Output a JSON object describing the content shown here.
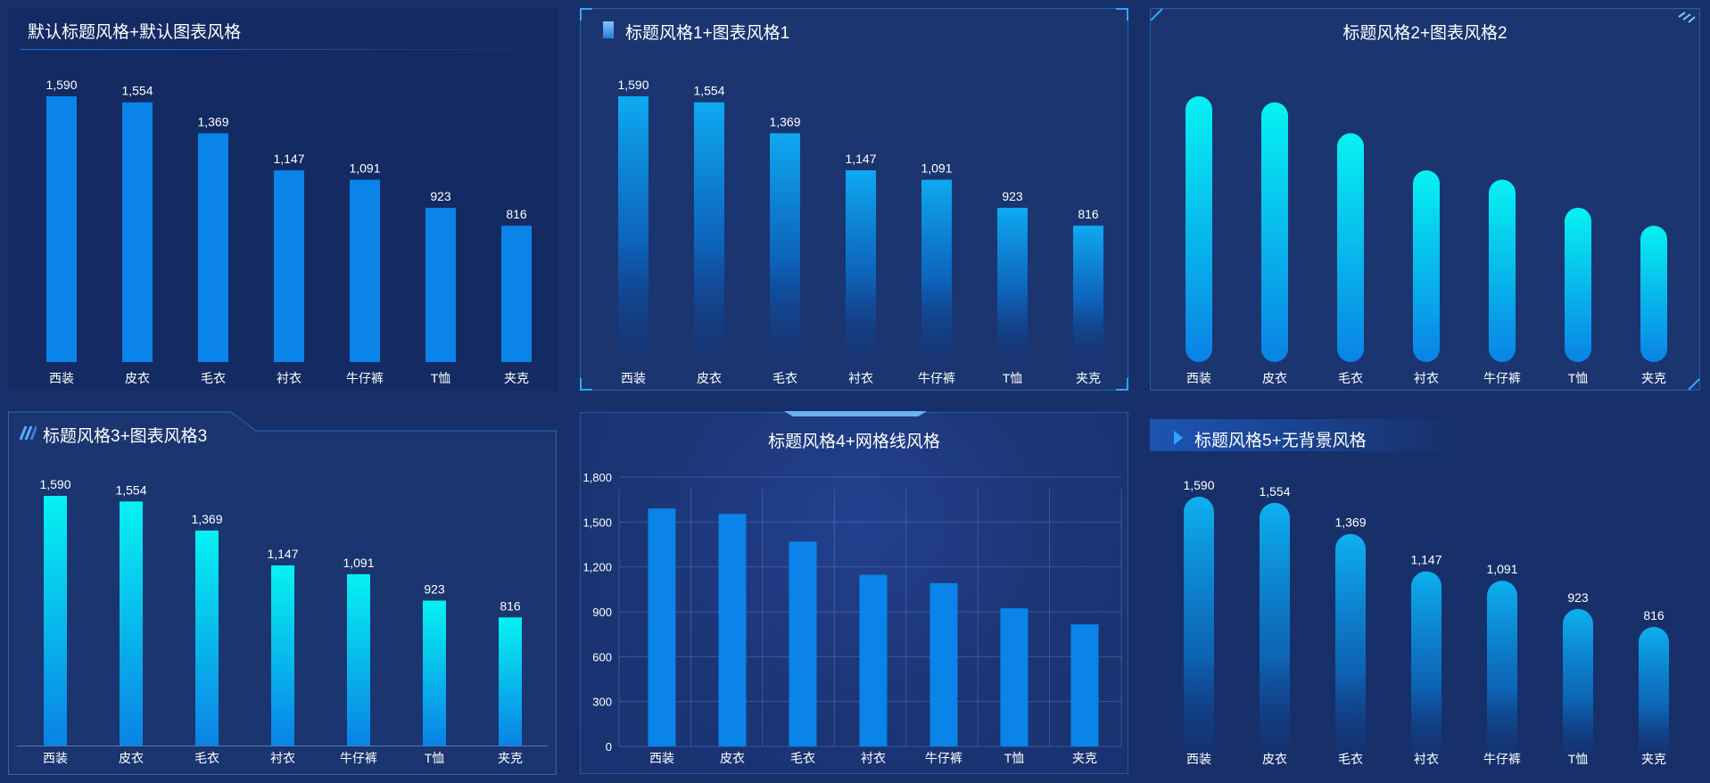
{
  "panels": [
    {
      "title": "默认标题风格+默认图表风格"
    },
    {
      "title": "标题风格1+图表风格1"
    },
    {
      "title": "标题风格2+图表风格2"
    },
    {
      "title": "标题风格3+图表风格3"
    },
    {
      "title": "标题风格4+网格线风格"
    },
    {
      "title": "标题风格5+无背景风格"
    }
  ],
  "colors": {
    "solid_bar": "#0a84e8",
    "cyan": "#06f2f2",
    "blue": "#0a82e6",
    "axis_text": "#ffffff"
  },
  "chart_data": [
    {
      "type": "bar",
      "style": "default",
      "title": "默认标题风格+默认图表风格",
      "categories": [
        "西装",
        "皮衣",
        "毛衣",
        "衬衣",
        "牛仔裤",
        "T恤",
        "夹克"
      ],
      "values": [
        1590,
        1554,
        1369,
        1147,
        1091,
        923,
        816
      ],
      "value_labels": [
        "1,590",
        "1,554",
        "1,369",
        "1,147",
        "1,091",
        "923",
        "816"
      ],
      "ylim": [
        0,
        1590
      ],
      "grid": false,
      "show_labels": true
    },
    {
      "type": "bar",
      "style": "gradient-fade",
      "title": "标题风格1+图表风格1",
      "categories": [
        "西装",
        "皮衣",
        "毛衣",
        "衬衣",
        "牛仔裤",
        "T恤",
        "夹克"
      ],
      "values": [
        1590,
        1554,
        1369,
        1147,
        1091,
        923,
        816
      ],
      "value_labels": [
        "1,590",
        "1,554",
        "1,369",
        "1,147",
        "1,091",
        "923",
        "816"
      ],
      "ylim": [
        0,
        1590
      ],
      "grid": false,
      "show_labels": true
    },
    {
      "type": "bar",
      "style": "rounded-cyan",
      "title": "标题风格2+图表风格2",
      "categories": [
        "西装",
        "皮衣",
        "毛衣",
        "衬衣",
        "牛仔裤",
        "T恤",
        "夹克"
      ],
      "values": [
        1590,
        1554,
        1369,
        1147,
        1091,
        923,
        816
      ],
      "ylim": [
        0,
        1590
      ],
      "grid": false,
      "show_labels": false
    },
    {
      "type": "bar",
      "style": "cyan-gradient",
      "title": "标题风格3+图表风格3",
      "categories": [
        "西装",
        "皮衣",
        "毛衣",
        "衬衣",
        "牛仔裤",
        "T恤",
        "夹克"
      ],
      "values": [
        1590,
        1554,
        1369,
        1147,
        1091,
        923,
        816
      ],
      "value_labels": [
        "1,590",
        "1,554",
        "1,369",
        "1,147",
        "1,091",
        "923",
        "816"
      ],
      "ylim": [
        0,
        1590
      ],
      "grid": false,
      "show_labels": true
    },
    {
      "type": "bar",
      "style": "grid",
      "title": "标题风格4+网格线风格",
      "categories": [
        "西装",
        "皮衣",
        "毛衣",
        "衬衣",
        "牛仔裤",
        "T恤",
        "夹克"
      ],
      "values": [
        1590,
        1554,
        1369,
        1147,
        1091,
        923,
        816
      ],
      "yticks": [
        0,
        300,
        600,
        900,
        1200,
        1500,
        1800
      ],
      "ytick_labels": [
        "0",
        "300",
        "600",
        "900",
        "1,200",
        "1,500",
        "1,800"
      ],
      "ylim": [
        0,
        1800
      ],
      "grid": true,
      "show_labels": false
    },
    {
      "type": "bar",
      "style": "rounded-fade",
      "title": "标题风格5+无背景风格",
      "categories": [
        "西装",
        "皮衣",
        "毛衣",
        "衬衣",
        "牛仔裤",
        "T恤",
        "夹克"
      ],
      "values": [
        1590,
        1554,
        1369,
        1147,
        1091,
        923,
        816
      ],
      "value_labels": [
        "1,590",
        "1,554",
        "1,369",
        "1,147",
        "1,091",
        "923",
        "816"
      ],
      "ylim": [
        0,
        1590
      ],
      "grid": false,
      "show_labels": true
    }
  ]
}
